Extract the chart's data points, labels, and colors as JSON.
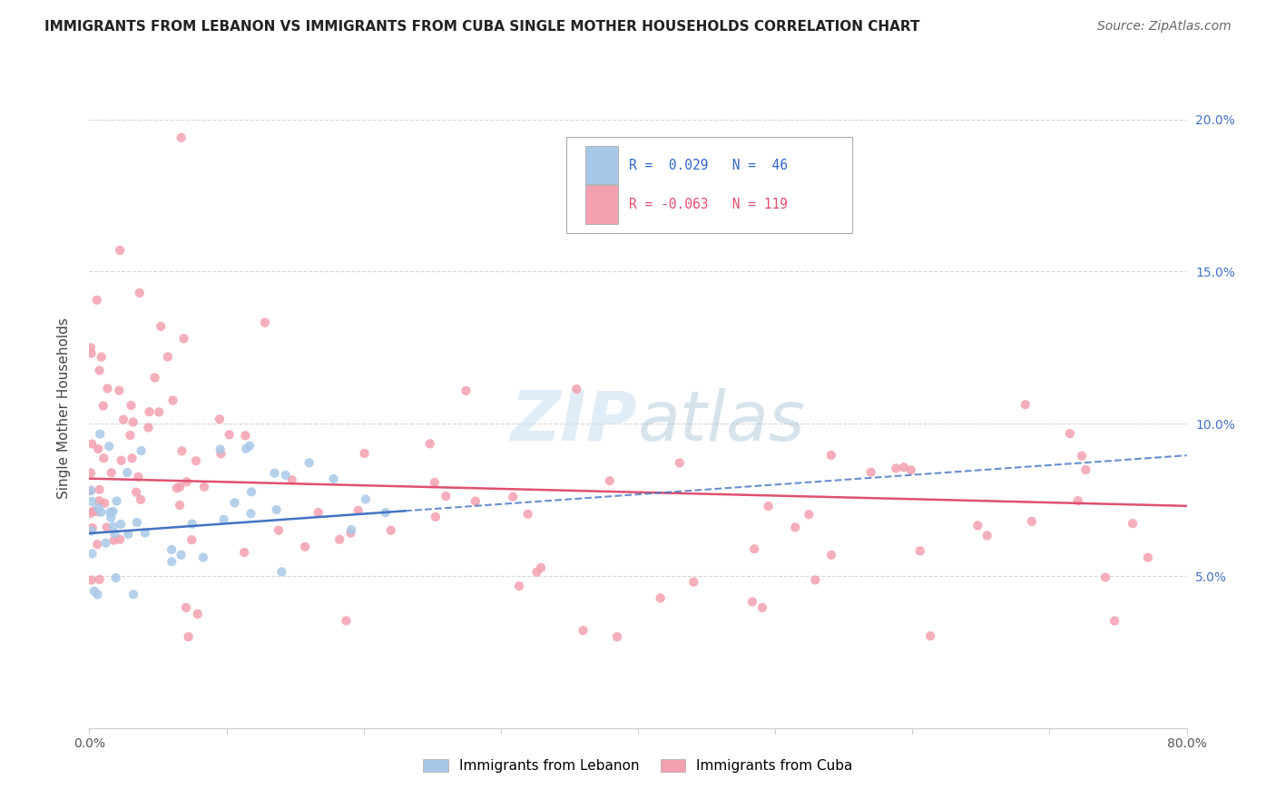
{
  "title": "IMMIGRANTS FROM LEBANON VS IMMIGRANTS FROM CUBA SINGLE MOTHER HOUSEHOLDS CORRELATION CHART",
  "source": "Source: ZipAtlas.com",
  "ylabel": "Single Mother Households",
  "xlim": [
    0.0,
    0.8
  ],
  "ylim": [
    0.0,
    0.21
  ],
  "xtick_positions": [
    0.0,
    0.1,
    0.2,
    0.3,
    0.4,
    0.5,
    0.6,
    0.7,
    0.8
  ],
  "xticklabels": [
    "0.0%",
    "",
    "",
    "",
    "",
    "",
    "",
    "",
    "80.0%"
  ],
  "ytick_positions": [
    0.0,
    0.05,
    0.1,
    0.15,
    0.2
  ],
  "yticklabels_right": [
    "",
    "5.0%",
    "10.0%",
    "15.0%",
    "20.0%"
  ],
  "color_lebanon": "#a8c8e8",
  "color_cuba": "#f4a0b0",
  "color_lebanon_line": "#4472C4",
  "color_cuba_line": "#e05070",
  "watermark_text": "ZIPatlas",
  "legend_r1": "R =  0.029",
  "legend_n1": "N =  46",
  "legend_r2": "R = -0.063",
  "legend_n2": "N = 119",
  "title_fontsize": 11,
  "source_fontsize": 10,
  "tick_fontsize": 10
}
